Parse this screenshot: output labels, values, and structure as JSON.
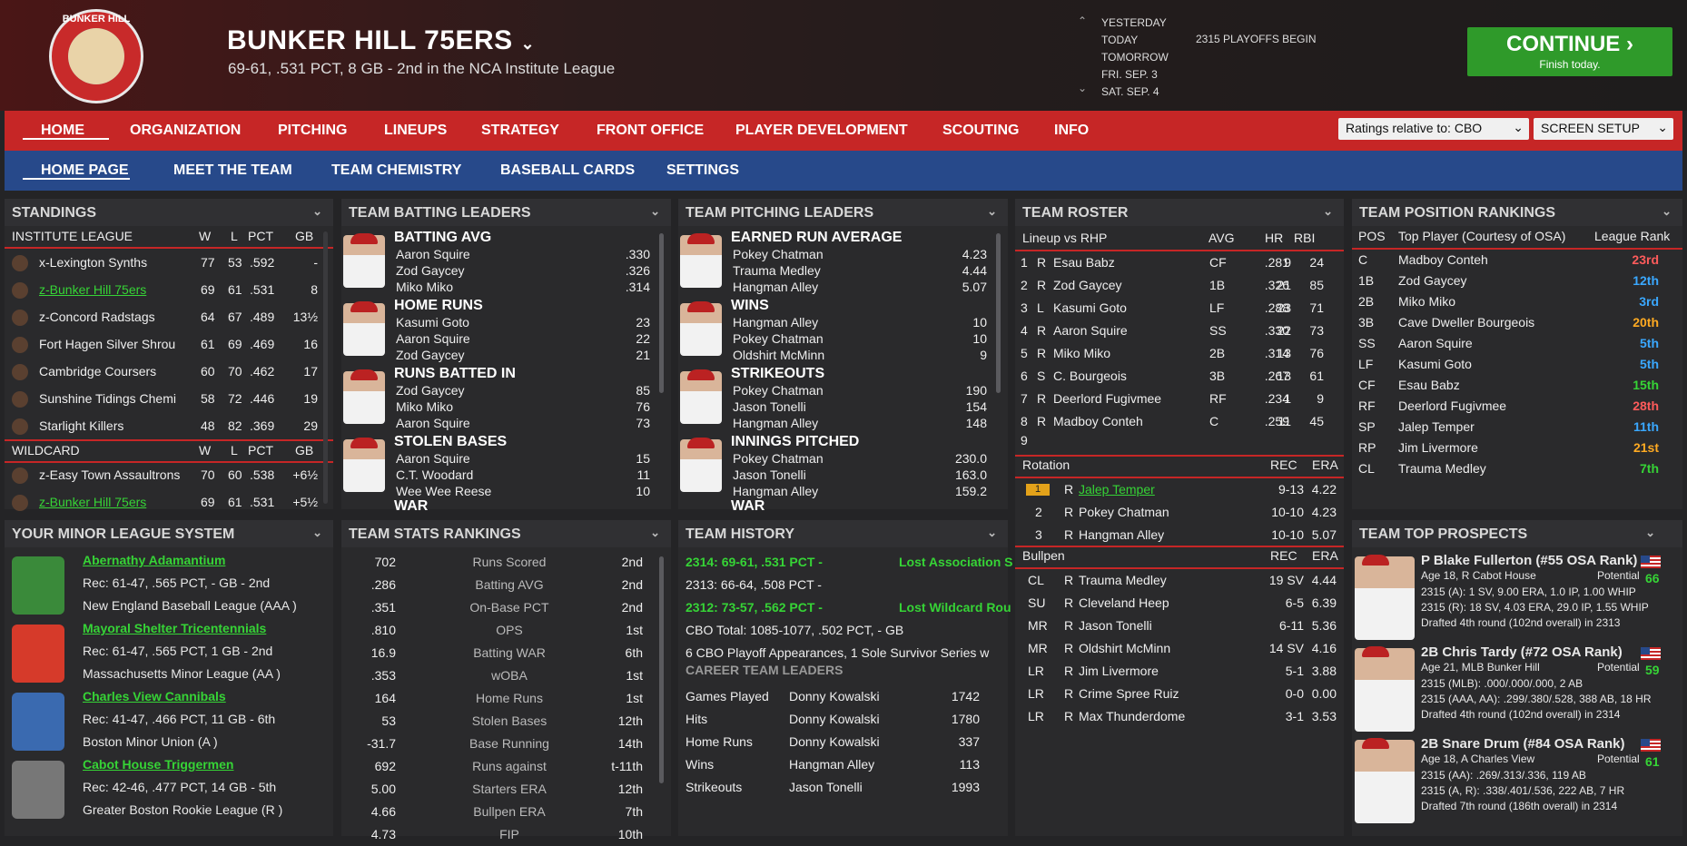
{
  "header": {
    "logo_text": "BUNKER HILL",
    "title": "BUNKER HILL 75ERS",
    "subtitle": "69-61, .531 PCT, 8 GB - 2nd in the NCA Institute League",
    "dates": [
      "YESTERDAY",
      "TODAY",
      "TOMORROW",
      "FRI. SEP. 3",
      "SAT. SEP. 4"
    ],
    "event": "2315 PLAYOFFS BEGIN",
    "continue_label": "CONTINUE",
    "continue_sub": "Finish today."
  },
  "nav": {
    "items": [
      "HOME",
      "ORGANIZATION",
      "PITCHING",
      "LINEUPS",
      "STRATEGY",
      "FRONT OFFICE",
      "PLAYER DEVELOPMENT",
      "SCOUTING",
      "INFO"
    ],
    "ratings": "Ratings relative to: CBO",
    "screen_setup": "SCREEN SETUP"
  },
  "subnav": {
    "items": [
      "HOME PAGE",
      "MEET THE TEAM",
      "TEAM CHEMISTRY",
      "BASEBALL CARDS",
      "SETTINGS"
    ]
  },
  "standings": {
    "title": "STANDINGS",
    "league": "INSTITUTE LEAGUE",
    "cols": [
      "W",
      "L",
      "PCT",
      "GB"
    ],
    "rows": [
      [
        "x-Lexington Synths",
        "77",
        "53",
        ".592",
        "-"
      ],
      [
        "z-Bunker Hill 75ers",
        "69",
        "61",
        ".531",
        "8"
      ],
      [
        "z-Concord Radstags",
        "64",
        "67",
        ".489",
        "13½"
      ],
      [
        "Fort Hagen Silver Shrou",
        "61",
        "69",
        ".469",
        "16"
      ],
      [
        "Cambridge Coursers",
        "60",
        "70",
        ".462",
        "17"
      ],
      [
        "Sunshine Tidings Chemi",
        "58",
        "72",
        ".446",
        "19"
      ],
      [
        "Starlight Killers",
        "48",
        "82",
        ".369",
        "29"
      ]
    ],
    "wildcard": "WILDCARD",
    "wc_rows": [
      [
        "z-Easy Town Assaultrons",
        "70",
        "60",
        ".538",
        "+6½"
      ],
      [
        "z-Bunker Hill 75ers",
        "69",
        "61",
        ".531",
        "+5½"
      ]
    ]
  },
  "batting": {
    "title": "TEAM BATTING LEADERS",
    "groups": [
      {
        "cat": "BATTING AVG",
        "rows": [
          [
            "Aaron Squire",
            ".330"
          ],
          [
            "Zod Gaycey",
            ".326"
          ],
          [
            "Miko Miko",
            ".314"
          ]
        ]
      },
      {
        "cat": "HOME RUNS",
        "rows": [
          [
            "Kasumi Goto",
            "23"
          ],
          [
            "Aaron Squire",
            "22"
          ],
          [
            "Zod Gaycey",
            "21"
          ]
        ]
      },
      {
        "cat": "RUNS BATTED IN",
        "rows": [
          [
            "Zod Gaycey",
            "85"
          ],
          [
            "Miko Miko",
            "76"
          ],
          [
            "Aaron Squire",
            "73"
          ]
        ]
      },
      {
        "cat": "STOLEN BASES",
        "rows": [
          [
            "Aaron Squire",
            "15"
          ],
          [
            "C.T. Woodard",
            "11"
          ],
          [
            "Wee Wee Reese",
            "10"
          ]
        ]
      }
    ],
    "more": "WAR"
  },
  "pitching": {
    "title": "TEAM PITCHING LEADERS",
    "groups": [
      {
        "cat": "EARNED RUN AVERAGE",
        "rows": [
          [
            "Pokey Chatman",
            "4.23"
          ],
          [
            "Trauma Medley",
            "4.44"
          ],
          [
            "Hangman Alley",
            "5.07"
          ]
        ]
      },
      {
        "cat": "WINS",
        "rows": [
          [
            "Hangman Alley",
            "10"
          ],
          [
            "Pokey Chatman",
            "10"
          ],
          [
            "Oldshirt McMinn",
            "9"
          ]
        ]
      },
      {
        "cat": "STRIKEOUTS",
        "rows": [
          [
            "Pokey Chatman",
            "190"
          ],
          [
            "Jason Tonelli",
            "154"
          ],
          [
            "Hangman Alley",
            "148"
          ]
        ]
      },
      {
        "cat": "INNINGS PITCHED",
        "rows": [
          [
            "Pokey Chatman",
            "230.0"
          ],
          [
            "Jason Tonelli",
            "163.0"
          ],
          [
            "Hangman Alley",
            "159.2"
          ]
        ]
      }
    ],
    "more": "WAR"
  },
  "roster": {
    "title": "TEAM ROSTER",
    "lineup_label": "Lineup vs RHP",
    "cols": [
      "AVG",
      "HR",
      "RBI"
    ],
    "lineup": [
      [
        "1",
        "R",
        "Esau Babz",
        "CF",
        ".281",
        "9",
        "24"
      ],
      [
        "2",
        "R",
        "Zod Gaycey",
        "1B",
        ".326",
        "21",
        "85"
      ],
      [
        "3",
        "L",
        "Kasumi Goto",
        "LF",
        ".288",
        "23",
        "71"
      ],
      [
        "4",
        "R",
        "Aaron Squire",
        "SS",
        ".330",
        "22",
        "73"
      ],
      [
        "5",
        "R",
        "Miko Miko",
        "2B",
        ".314",
        "13",
        "76"
      ],
      [
        "6",
        "S",
        "C. Bourgeois",
        "3B",
        ".267",
        "13",
        "61"
      ],
      [
        "7",
        "R",
        "Deerlord Fugivmee",
        "RF",
        ".234",
        "1",
        "9"
      ],
      [
        "8",
        "R",
        "Madboy Conteh",
        "C",
        ".259",
        "11",
        "45"
      ]
    ],
    "ninth": "9",
    "rotation_label": "Rotation",
    "rot_cols": [
      "REC",
      "ERA"
    ],
    "rotation": [
      [
        "1",
        "R",
        "Jalep Temper",
        "9-13",
        "4.22"
      ],
      [
        "2",
        "R",
        "Pokey Chatman",
        "10-10",
        "4.23"
      ],
      [
        "3",
        "R",
        "Hangman Alley",
        "10-10",
        "5.07"
      ]
    ],
    "bullpen_label": "Bullpen",
    "bullpen": [
      [
        "CL",
        "R",
        "Trauma Medley",
        "19 SV",
        "4.44"
      ],
      [
        "SU",
        "R",
        "Cleveland Heep",
        "6-5",
        "6.39"
      ],
      [
        "MR",
        "R",
        "Jason Tonelli",
        "6-11",
        "5.36"
      ],
      [
        "MR",
        "R",
        "Oldshirt McMinn",
        "14 SV",
        "4.16"
      ],
      [
        "LR",
        "R",
        "Jim Livermore",
        "5-1",
        "3.88"
      ],
      [
        "LR",
        "R",
        "Crime Spree Ruiz",
        "0-0",
        "0.00"
      ],
      [
        "LR",
        "R",
        "Max Thunderdome",
        "3-1",
        "3.53"
      ]
    ]
  },
  "positions": {
    "title": "TEAM POSITION RANKINGS",
    "cols": [
      "POS",
      "Top Player (Courtesy of OSA)",
      "League Rank"
    ],
    "rows": [
      [
        "C",
        "Madboy Conteh",
        "23rd",
        "#ff5b5b"
      ],
      [
        "1B",
        "Zod Gaycey",
        "12th",
        "#3aa8ff"
      ],
      [
        "2B",
        "Miko Miko",
        "3rd",
        "#3aa8ff"
      ],
      [
        "3B",
        "Cave Dweller Bourgeois",
        "20th",
        "#ffaa22"
      ],
      [
        "SS",
        "Aaron Squire",
        "5th",
        "#3aa8ff"
      ],
      [
        "LF",
        "Kasumi Goto",
        "5th",
        "#3aa8ff"
      ],
      [
        "CF",
        "Esau Babz",
        "15th",
        "#36d436"
      ],
      [
        "RF",
        "Deerlord Fugivmee",
        "28th",
        "#ff5b5b"
      ],
      [
        "SP",
        "Jalep Temper",
        "11th",
        "#3aa8ff"
      ],
      [
        "RP",
        "Jim Livermore",
        "21st",
        "#ffaa22"
      ],
      [
        "CL",
        "Trauma Medley",
        "7th",
        "#36d436"
      ]
    ]
  },
  "minors": {
    "title": "YOUR MINOR LEAGUE SYSTEM",
    "teams": [
      {
        "name": "Abernathy Adamantium",
        "rec": "Rec: 61-47, .565 PCT, - GB - 2nd",
        "league": "New England Baseball League (AAA )"
      },
      {
        "name": "Mayoral Shelter Tricentennials",
        "rec": "Rec: 61-47, .565 PCT, 1 GB - 2nd",
        "league": "Massachusetts Minor League (AA )"
      },
      {
        "name": "Charles View Cannibals",
        "rec": "Rec: 41-47, .466 PCT, 11 GB - 6th",
        "league": "Boston Minor Union (A )"
      },
      {
        "name": "Cabot House Triggermen",
        "rec": "Rec: 42-46, .477 PCT, 14 GB - 5th",
        "league": "Greater Boston Rookie League (R )"
      }
    ]
  },
  "stats": {
    "title": "TEAM STATS RANKINGS",
    "rows": [
      [
        "702",
        "Runs Scored",
        "2nd"
      ],
      [
        ".286",
        "Batting AVG",
        "2nd"
      ],
      [
        ".351",
        "On-Base PCT",
        "2nd"
      ],
      [
        ".810",
        "OPS",
        "1st"
      ],
      [
        "16.9",
        "Batting WAR",
        "6th"
      ],
      [
        ".353",
        "wOBA",
        "1st"
      ],
      [
        "164",
        "Home Runs",
        "1st"
      ],
      [
        "53",
        "Stolen Bases",
        "12th"
      ],
      [
        "-31.7",
        "Base Running",
        "14th"
      ],
      [
        "692",
        "Runs against",
        "t-11th"
      ],
      [
        "5.00",
        "Starters ERA",
        "12th"
      ],
      [
        "4.66",
        "Bullpen ERA",
        "7th"
      ],
      [
        "4.73",
        "FIP",
        "10th"
      ]
    ]
  },
  "history": {
    "title": "TEAM HISTORY",
    "lines": [
      {
        "text": "2314: 69-61, .531 PCT - ",
        "extra": "Lost Association S",
        "green": true
      },
      {
        "text": "2313: 66-64, .508 PCT - ",
        "extra": "",
        "green": false
      },
      {
        "text": "2312: 73-57, .562 PCT - ",
        "extra": "Lost Wildcard Rou",
        "green": true
      },
      {
        "text": "CBO Total: 1085-1077, .502 PCT, - GB",
        "extra": "",
        "green": false
      },
      {
        "text": "6 CBO Playoff Appearances, 1 Sole Survivor Series w",
        "extra": "",
        "green": false
      }
    ],
    "career_label": "CAREER TEAM LEADERS",
    "career": [
      [
        "Games Played",
        "Donny Kowalski",
        "1742"
      ],
      [
        "Hits",
        "Donny Kowalski",
        "1780"
      ],
      [
        "Home Runs",
        "Donny Kowalski",
        "337"
      ],
      [
        "Wins",
        "Hangman Alley",
        "113"
      ],
      [
        "Strikeouts",
        "Jason Tonelli",
        "1993"
      ]
    ]
  },
  "prospects": {
    "title": "TEAM TOP PROSPECTS",
    "potential_label": "Potential",
    "items": [
      {
        "name": "P Blake Fullerton (#55 OSA Rank)",
        "info": "Age 18, R Cabot House",
        "pot": "66",
        "l1": "2315 (A): 1 SV, 9.00 ERA, 1.0 IP, 1.00 WHIP",
        "l2": "2315 (R): 18 SV, 4.03 ERA, 29.0 IP, 1.55 WHIP",
        "l3": "Drafted 4th round (102nd overall) in 2313"
      },
      {
        "name": "2B Chris Tardy (#72 OSA Rank)",
        "info": "Age 21, MLB Bunker Hill",
        "pot": "59",
        "l1": "2315 (MLB): .000/.000/.000, 2 AB",
        "l2": "2315 (AAA, AA): .299/.380/.528, 388 AB, 18 HR",
        "l3": "Drafted 4th round (102nd overall) in 2314"
      },
      {
        "name": "2B Snare Drum (#84 OSA Rank)",
        "info": "Age 18, A Charles View",
        "pot": "61",
        "l1": "2315 (AA): .269/.313/.336, 119 AB",
        "l2": "2315 (A, R): .338/.401/.536, 222 AB, 7 HR",
        "l3": "Drafted 7th round (186th overall) in 2314"
      }
    ]
  }
}
